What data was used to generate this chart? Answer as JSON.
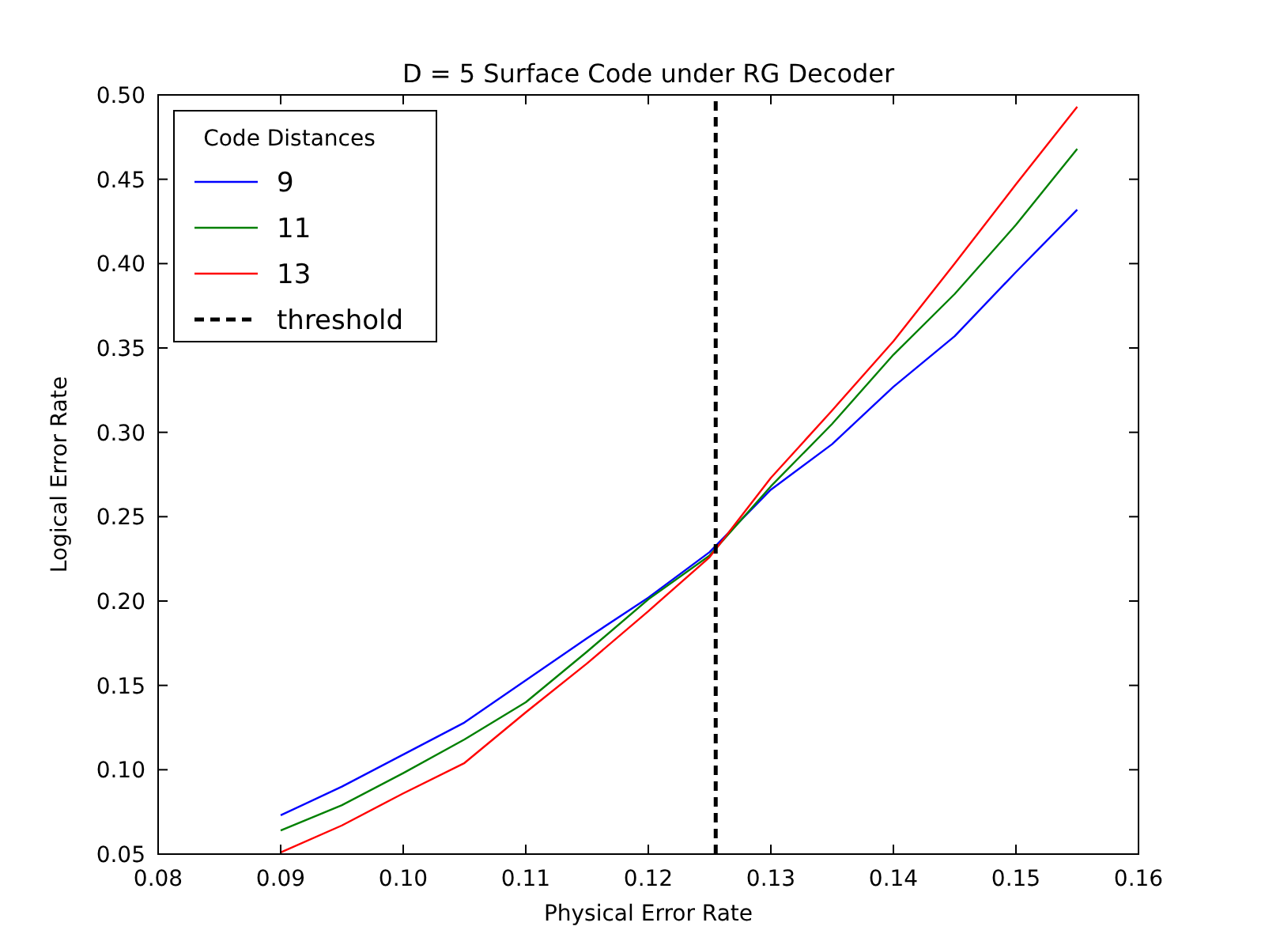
{
  "chart_data": {
    "type": "line",
    "title": "D = 5 Surface Code under RG Decoder",
    "xlabel": "Physical Error Rate",
    "ylabel": "Logical Error Rate",
    "legend_title": "Code Distances",
    "legend": "top left",
    "grid": false,
    "line_style": "solid",
    "marker": "none",
    "x": [
      0.09,
      0.095,
      0.1,
      0.105,
      0.11,
      0.115,
      0.12,
      0.125,
      0.13,
      0.135,
      0.14,
      0.145,
      0.15,
      0.155
    ],
    "xlim": [
      0.08,
      0.16
    ],
    "xticks": [
      0.08,
      0.09,
      {
        "value": 0.1,
        "label": "0.10"
      },
      0.11,
      0.12,
      0.13,
      0.14,
      0.15,
      0.16
    ],
    "ylim": [
      0.05,
      0.5
    ],
    "yticks": [
      0.05,
      {
        "value": 0.1,
        "label": "0.10"
      },
      0.15,
      {
        "value": 0.2,
        "label": "0.20"
      },
      0.25,
      {
        "value": 0.3,
        "label": "0.30"
      },
      0.35,
      {
        "value": 0.4,
        "label": "0.40"
      },
      0.45,
      {
        "value": 0.5,
        "label": "0.50"
      }
    ],
    "series": [
      {
        "name": "9",
        "color": "#0000ff",
        "values": [
          0.073,
          0.09,
          0.109,
          0.128,
          0.153,
          0.178,
          0.202,
          0.229,
          0.266,
          0.293,
          0.327,
          0.357,
          0.395,
          0.432
        ]
      },
      {
        "name": "11",
        "color": "#008000",
        "values": [
          0.064,
          0.079,
          0.098,
          0.118,
          0.14,
          0.17,
          0.201,
          0.227,
          0.268,
          0.305,
          0.346,
          0.382,
          0.423,
          0.468
        ]
      },
      {
        "name": "13",
        "color": "#ff0000",
        "values": [
          0.051,
          0.067,
          0.086,
          0.104,
          0.134,
          0.163,
          0.194,
          0.226,
          0.273,
          0.313,
          0.354,
          0.4,
          0.447,
          0.493
        ]
      },
      {
        "name": "threshold",
        "color": "#000000",
        "line_style": "dashed",
        "x": [
          0.1255,
          0.1255
        ],
        "values": [
          0.05,
          0.5
        ]
      }
    ]
  }
}
